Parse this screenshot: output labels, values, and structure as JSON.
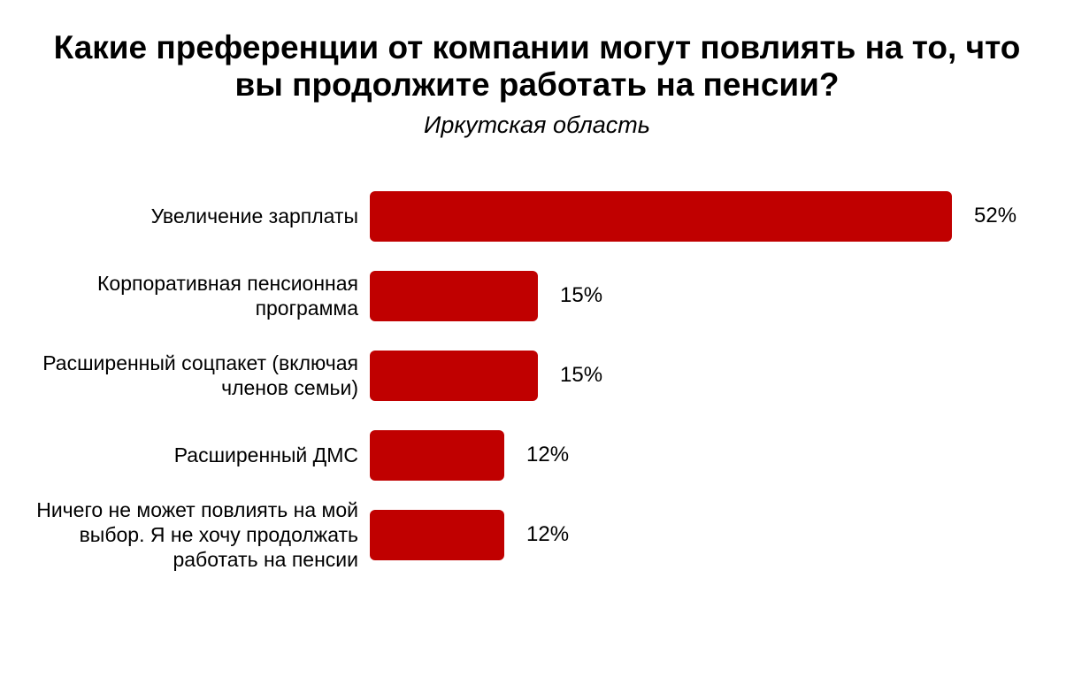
{
  "page": {
    "background": "#ffffff"
  },
  "header": {
    "title": "Какие преференции от компании могут повлиять на то, что вы продолжите работать на пенсии?",
    "subtitle": "Иркутская область"
  },
  "chart_data": {
    "type": "bar",
    "orientation": "horizontal",
    "title": "Какие преференции от компании могут повлиять на то, что вы продолжите работать на пенсии?",
    "subtitle": "Иркутская область",
    "categories": [
      "Увеличение зарплаты",
      "Корпоративная пенсионная программа",
      "Расширенный соцпакет (включая членов семьи)",
      "Расширенный ДМС",
      "Ничего не может повлиять на мой выбор. Я не хочу продолжать работать на пенсии"
    ],
    "values": [
      52,
      15,
      15,
      12,
      12
    ],
    "data_labels": [
      "52%",
      "15%",
      "15%",
      "12%",
      "12%"
    ],
    "value_unit": "%",
    "xlim": [
      0,
      52
    ],
    "bar_color": "#c00000",
    "text_color": "#000000",
    "grid": false,
    "legend": false,
    "axes_visible": false
  }
}
